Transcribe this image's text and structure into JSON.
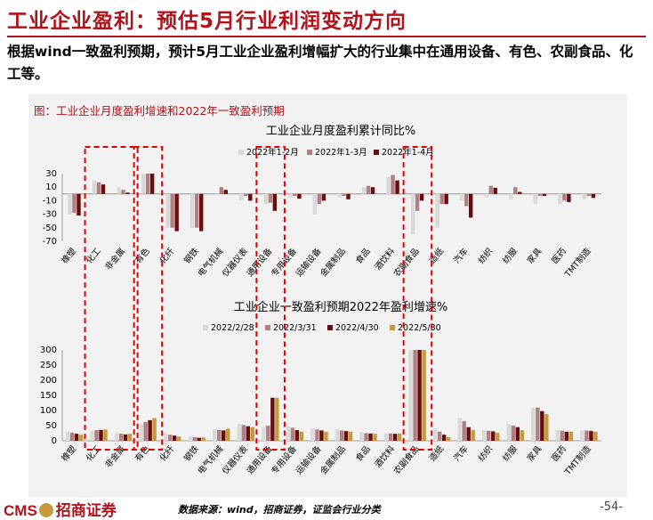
{
  "page": {
    "title": "工业企业盈利：预估5月行业利润变动方向",
    "summary": "根据wind一致盈利预期，预计5月工业企业盈利增幅扩大的行业集中在通用设备、有色、农副食品、化工等。",
    "figure_caption": "图：工业企业月度盈利增速和2022年一致盈利预期",
    "source": "数据来源：wind，招商证券，证监会行业分类",
    "page_number": "-54-",
    "logo_text_1": "CMS",
    "logo_text_2": "招商证券"
  },
  "colors": {
    "brand": "#b3121b",
    "highlight_box": "#e00000"
  },
  "chart_data": [
    {
      "type": "bar",
      "title": "工业企业月度盈利累计同比%",
      "categories": [
        "橡塑",
        "化工",
        "非金属",
        "有色",
        "化纤",
        "钢铁",
        "电气机械",
        "仪器仪表",
        "通用设备",
        "专用设备",
        "运输设备",
        "金属制品",
        "食品",
        "酒饮料",
        "农副食品",
        "造纸",
        "汽车",
        "纺织",
        "纺服",
        "家具",
        "医药",
        "TMT制造"
      ],
      "series": [
        {
          "name": "2022年1-2月",
          "color": "#d9d9d9",
          "values": [
            -30,
            20,
            10,
            30,
            -50,
            -50,
            0,
            -10,
            -15,
            -5,
            -30,
            -5,
            10,
            25,
            -60,
            -50,
            -10,
            -5,
            -8,
            -15,
            -15,
            -8
          ]
        },
        {
          "name": "2022年1-3月",
          "color": "#b07f82",
          "values": [
            -28,
            17,
            6,
            30,
            -50,
            -50,
            10,
            -3,
            -13,
            -3,
            -15,
            -3,
            12,
            28,
            -25,
            -15,
            -18,
            12,
            10,
            -3,
            -10,
            -3
          ]
        },
        {
          "name": "2022年1-4月",
          "color": "#6a0c0c",
          "values": [
            -32,
            14,
            2,
            30,
            -55,
            -55,
            6,
            -10,
            -25,
            -7,
            -10,
            -8,
            10,
            20,
            -10,
            -15,
            -35,
            9,
            3,
            -3,
            -12,
            -6
          ]
        }
      ],
      "ylim": [
        -70,
        30
      ],
      "yticks": [
        30,
        10,
        -10,
        -30,
        -50,
        -70
      ],
      "legend": "top-right"
    },
    {
      "type": "bar",
      "title": "工业企业一致盈利预期2022年盈利增速%",
      "categories": [
        "橡塑",
        "化工",
        "非金属",
        "有色",
        "化纤",
        "钢铁",
        "电气机械",
        "仪器仪表",
        "通用设备",
        "专用设备",
        "运输设备",
        "金属制品",
        "食品",
        "酒饮料",
        "农副食品",
        "造纸",
        "汽车",
        "纺织",
        "纺服",
        "家具",
        "医药",
        "TMT制造"
      ],
      "series": [
        {
          "name": "2022/2/28",
          "color": "#d9d9d9",
          "values": [
            30,
            33,
            25,
            55,
            25,
            15,
            38,
            55,
            45,
            48,
            40,
            38,
            28,
            25,
            300,
            40,
            75,
            35,
            55,
            108,
            35,
            35
          ]
        },
        {
          "name": "2022/3/31",
          "color": "#b07f82",
          "values": [
            27,
            35,
            23,
            62,
            20,
            12,
            36,
            52,
            50,
            43,
            37,
            34,
            25,
            24,
            300,
            30,
            65,
            33,
            50,
            110,
            33,
            34
          ]
        },
        {
          "name": "2022/4/30",
          "color": "#6a0c0c",
          "values": [
            23,
            36,
            21,
            68,
            17,
            10,
            34,
            48,
            142,
            35,
            34,
            32,
            24,
            23,
            300,
            20,
            45,
            31,
            45,
            98,
            30,
            32
          ]
        },
        {
          "name": "2022/5/30",
          "color": "#c49a3c",
          "values": [
            20,
            37,
            23,
            75,
            14,
            11,
            40,
            45,
            142,
            30,
            30,
            30,
            23,
            24,
            300,
            12,
            35,
            26,
            35,
            88,
            30,
            30
          ]
        }
      ],
      "ylim": [
        0,
        300
      ],
      "yticks": [
        300,
        250,
        200,
        150,
        100,
        50,
        0
      ],
      "legend": "top-center"
    }
  ]
}
